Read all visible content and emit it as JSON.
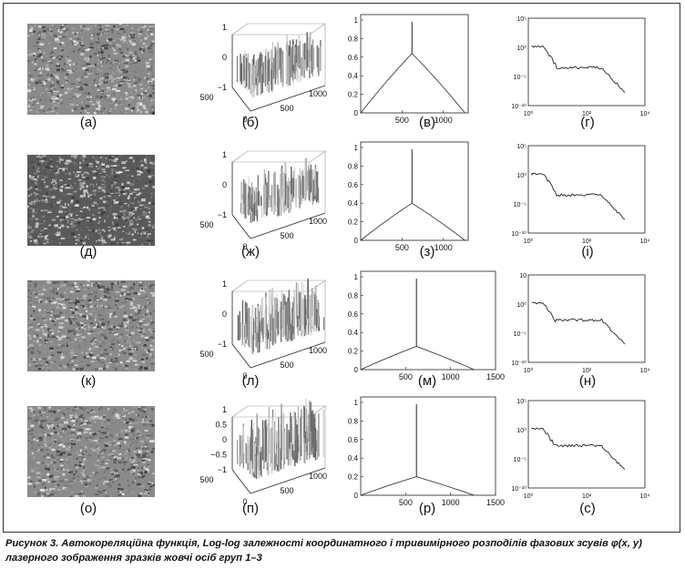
{
  "rows": [
    {
      "labels": [
        "(а)",
        "(б)",
        "(в)",
        "(г)"
      ],
      "surf_zticks": [
        "1",
        "0",
        "−1"
      ],
      "surf_yticks": [
        "500",
        "0"
      ],
      "surf_xticks": [
        "500",
        "1000"
      ],
      "lin_xticks": [
        "500",
        "1000"
      ],
      "lin_yticks": [
        "1",
        "0.8",
        "0.6",
        "0.4",
        "0.2",
        "0"
      ],
      "log_yticks": [
        "10⁵",
        "10⁰",
        "10⁻⁵",
        "10⁻¹⁰"
      ],
      "log_xticks": [
        "10⁰",
        "10²",
        "10⁴"
      ]
    },
    {
      "labels": [
        "(д)",
        "(ж)",
        "(з)",
        "(і)"
      ],
      "surf_zticks": [
        "1",
        "0",
        "−1"
      ],
      "surf_yticks": [
        "500",
        "0"
      ],
      "surf_xticks": [
        "500",
        "1000"
      ],
      "lin_xticks": [
        "500",
        "1000"
      ],
      "lin_yticks": [
        "1",
        "0.8",
        "0.6",
        "0.4",
        "0.2",
        "0"
      ],
      "log_yticks": [
        "10⁵",
        "10⁰",
        "10⁻⁵",
        "10⁻¹⁰"
      ],
      "log_xticks": [
        "10⁰",
        "10²",
        "10⁴"
      ]
    },
    {
      "labels": [
        "(к)",
        "(л)",
        "(м)",
        "(н)"
      ],
      "surf_zticks": [
        "1",
        "0",
        "−1"
      ],
      "surf_yticks": [
        "500",
        "0"
      ],
      "surf_xticks": [
        "500",
        "1000"
      ],
      "lin_xticks": [
        "500",
        "1000",
        "1500"
      ],
      "lin_yticks": [
        "1",
        "0.8",
        "0.6",
        "0.4",
        "0.2",
        "0"
      ],
      "log_yticks": [
        "10",
        "10⁰",
        "10⁻⁵",
        "10⁻¹⁰"
      ],
      "log_xticks": [
        "10⁰",
        "10²",
        "10⁴"
      ]
    },
    {
      "labels": [
        "(о)",
        "(п)",
        "(р)",
        "(с)"
      ],
      "surf_zticks": [
        "1",
        "0.5",
        "0",
        "−0.5",
        "−1"
      ],
      "surf_yticks": [
        "500",
        "0"
      ],
      "surf_xticks": [
        "500",
        "1000"
      ],
      "lin_xticks": [
        "500",
        "1000",
        "1500"
      ],
      "lin_yticks": [
        "1",
        "0.8",
        "0.6",
        "0.4",
        "0.2",
        "0"
      ],
      "log_yticks": [
        "10⁵",
        "10⁰",
        "10⁻⁵",
        "10⁻¹⁰"
      ],
      "log_xticks": [
        "10⁰",
        "10²",
        "10⁴"
      ]
    }
  ],
  "caption": "Рисунок 3. Автокореляційна функція, Log-log залежності координатного і тривимірного розподілів фазових зсувів φ(x, y) лазерного зображення зразків жовчі осіб груп 1–3"
}
